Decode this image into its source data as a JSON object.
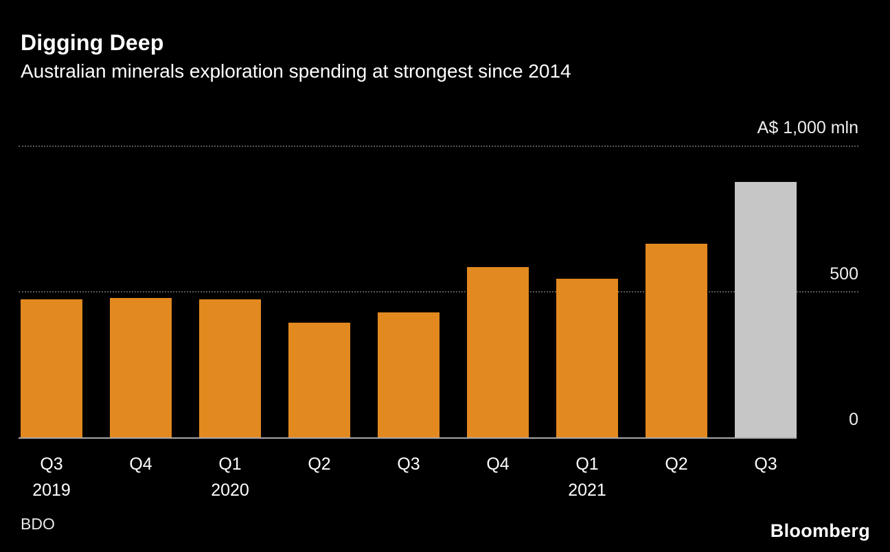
{
  "header": {
    "title": "Digging Deep",
    "subtitle": "Australian minerals exploration spending at strongest since 2014"
  },
  "chart_data": {
    "type": "bar",
    "title": "Digging Deep",
    "subtitle": "Australian minerals exploration spending at strongest since 2014",
    "unit_label": "A$ 1,000 mln",
    "categories": [
      "Q3",
      "Q4",
      "Q1",
      "Q2",
      "Q3",
      "Q4",
      "Q1",
      "Q2",
      "Q3"
    ],
    "year_labels": [
      {
        "index": 0,
        "label": "2019"
      },
      {
        "index": 2,
        "label": "2020"
      },
      {
        "index": 6,
        "label": "2021"
      }
    ],
    "values": [
      475,
      480,
      475,
      395,
      430,
      585,
      545,
      665,
      875
    ],
    "ylim": [
      0,
      1000
    ],
    "yticks": [
      {
        "value": 1000,
        "label": "A$ 1,000 mln"
      },
      {
        "value": 500,
        "label": "500"
      },
      {
        "value": 0,
        "label": "0"
      }
    ],
    "grid": "horizontal dotted",
    "legend": "none",
    "bar_color": "#E2891F",
    "highlight_color": "#C6C6C6",
    "highlight_index": 8,
    "background_color": "#000000"
  },
  "footer": {
    "source": "BDO",
    "brand": "Bloomberg"
  }
}
